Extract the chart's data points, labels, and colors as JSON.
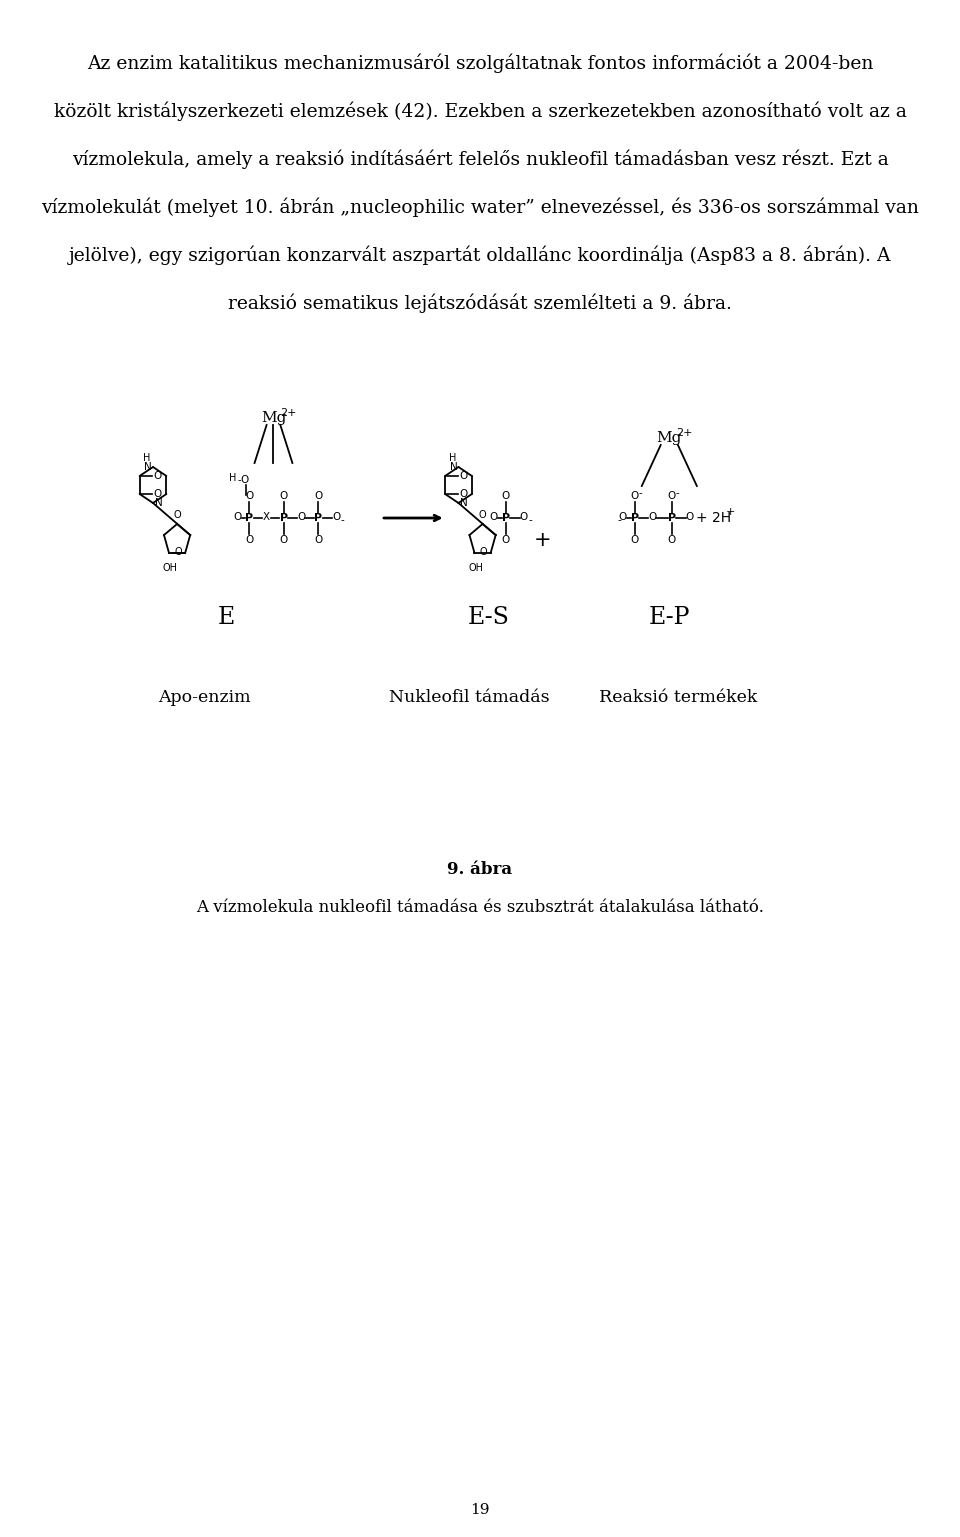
{
  "bg_color": "#ffffff",
  "text_color": "#000000",
  "page_width": 9.6,
  "page_height": 15.37,
  "paragraph1": "Az enzim katalitikus mechanizmusáról szolgáltatnak fontos információt a 2004-ben",
  "paragraph2": "közölt kristályszerkezeti elemzések (42). Ezekben a szerkezetekben azonosítható volt az a",
  "paragraph3": "vízmolekula, amely a reaksió indításáért felelős nukleofil támadásban vesz részt. Ezt a",
  "paragraph4": "vízmolekulát (melyet 10. ábrán „nucleophilic water” elnevezéssel, és 336-os sorszámmal van",
  "paragraph5": "jelölve), egy szigorúan konzarvált aszpartát oldallánc koordinálja (Asp83 a 8. ábrán). A",
  "paragraph6": "reaksió sematikus lejátszódását szemlélteti a 9. ábra.",
  "label_E": "E",
  "label_ES": "E-S",
  "label_EP": "E-P",
  "label_apo": "Apo-enzim",
  "label_nukleofil": "Nukleofil támadás",
  "label_reakcio": "Reaksió termékek",
  "figure_number": "9. ábra",
  "figure_caption": "A vízmolekula nukleofil támadása és szubsztrát átalakulása látható.",
  "page_number": "19"
}
